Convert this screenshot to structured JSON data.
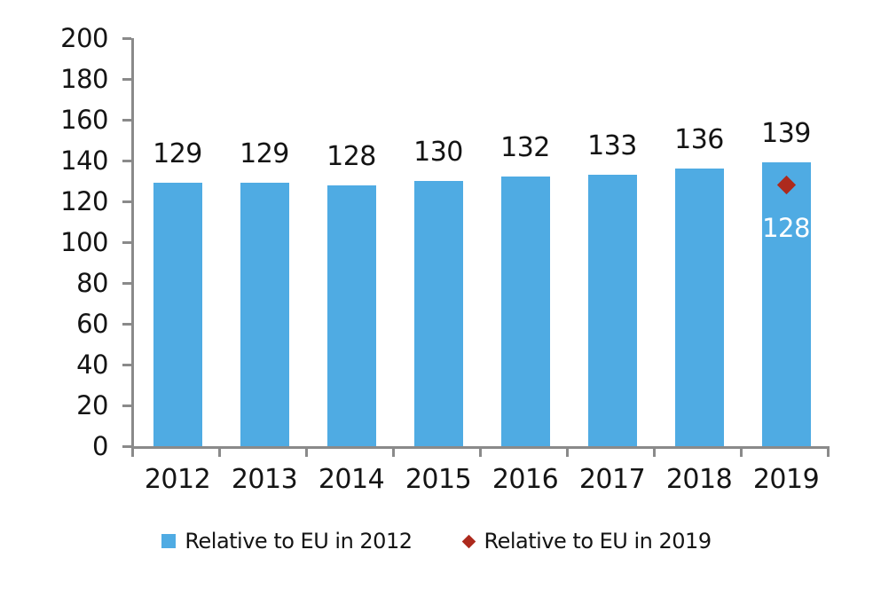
{
  "chart_data": {
    "type": "bar",
    "title": "",
    "xlabel": "",
    "ylabel": "",
    "categories": [
      "2012",
      "2013",
      "2014",
      "2015",
      "2016",
      "2017",
      "2018",
      "2019"
    ],
    "series": [
      {
        "name": "Relative to EU in 2012",
        "type": "bar",
        "color": "#4fabe3",
        "values": [
          129,
          129,
          128,
          130,
          132,
          133,
          136,
          139
        ],
        "data_labels": [
          "129",
          "129",
          "128",
          "130",
          "132",
          "133",
          "136",
          "139"
        ]
      },
      {
        "name": "Relative to EU in 2019",
        "type": "scatter",
        "marker": "diamond",
        "color": "#ad2a1d",
        "points": [
          {
            "category": "2019",
            "value": 128,
            "label": "128",
            "label_color": "#ffffff"
          }
        ]
      }
    ],
    "ylim": [
      0,
      200
    ],
    "yticks": [
      "0",
      "20",
      "40",
      "60",
      "80",
      "100",
      "120",
      "140",
      "160",
      "180",
      "200"
    ],
    "grid": false,
    "legend_position": "bottom",
    "axis_color": "#8a8a8a",
    "text_color": "#141414",
    "background": "#ffffff"
  },
  "legend": {
    "items": [
      {
        "label": "Relative to EU in 2012",
        "marker": "square",
        "color": "#4fabe3"
      },
      {
        "label": "Relative to EU in 2019",
        "marker": "diamond",
        "color": "#ad2a1d"
      }
    ]
  }
}
